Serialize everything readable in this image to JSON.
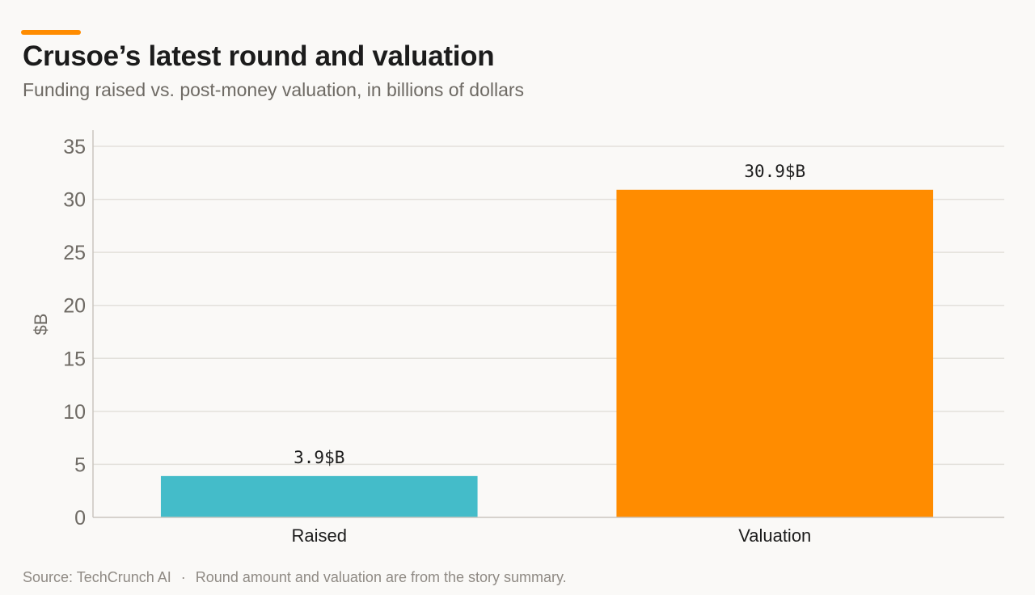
{
  "header": {
    "title": "Crusoe’s latest round and valuation",
    "subtitle": "Funding raised vs. post-money valuation, in billions of dollars"
  },
  "footer": {
    "source": "Source: TechCrunch AI",
    "separator": "·",
    "note": "Round amount and valuation are from the story summary."
  },
  "colors": {
    "accent": "#ff8c00",
    "raised": "#44bcc9",
    "valuation": "#ff8c00",
    "grid": "#e3e0db",
    "axis": "#c9c5bf"
  },
  "chart_data": {
    "type": "bar",
    "title": "Crusoe’s latest round and valuation",
    "subtitle": "Funding raised vs. post-money valuation, in billions of dollars",
    "xlabel": "",
    "ylabel": "$B",
    "categories": [
      "Raised",
      "Valuation"
    ],
    "values": [
      3.9,
      30.9
    ],
    "value_labels": [
      "3.9$B",
      "30.9$B"
    ],
    "bar_colors": [
      "#44bcc9",
      "#ff8c00"
    ],
    "ylim": [
      0,
      35
    ],
    "yticks": [
      0,
      5,
      10,
      15,
      20,
      25,
      30,
      35
    ],
    "grid": true,
    "legend": "none"
  }
}
